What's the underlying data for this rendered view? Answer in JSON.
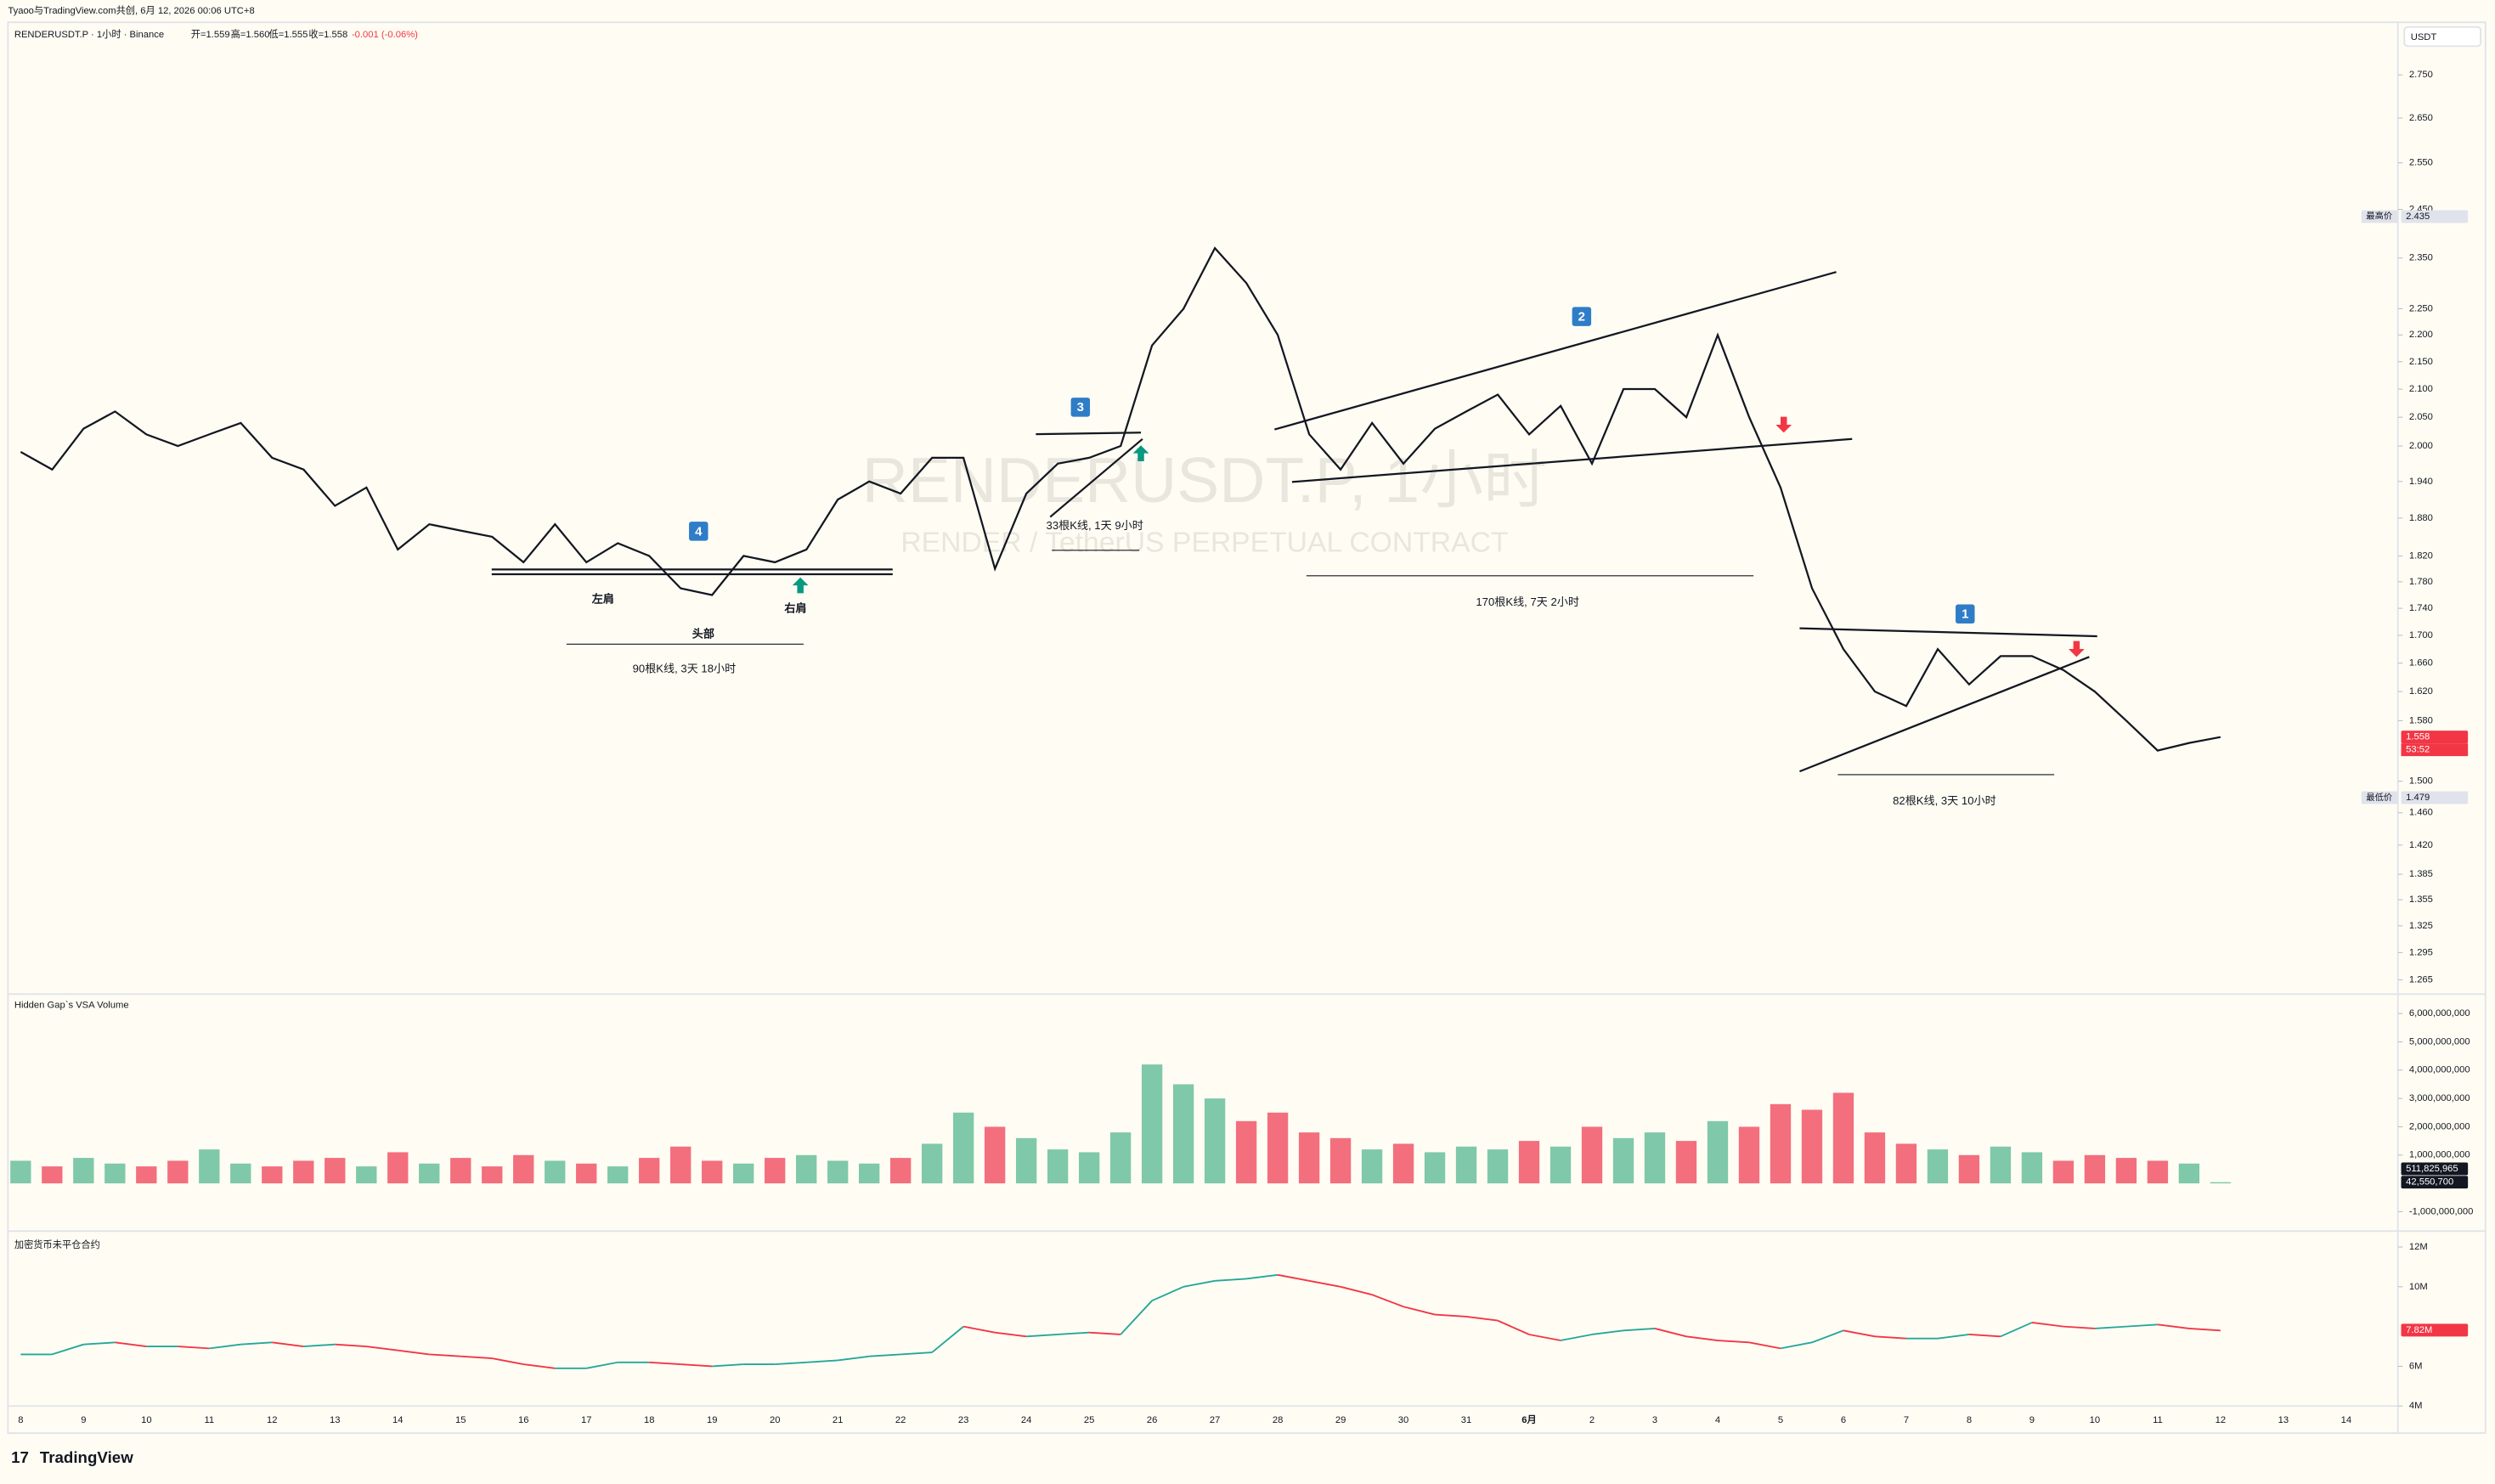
{
  "header": {
    "credit": "Tyaoo与TradingView.com共创, 6月 12, 2026 00:06 UTC+8",
    "symbol": "RENDERUSDT.P · 1小时 · Binance",
    "ohlc": [
      "开=1.559",
      "高=1.560",
      "低=1.555",
      "收=1.558"
    ],
    "change": "-0.001 (-0.06%)",
    "currency": "USDT"
  },
  "watermark": {
    "symbol": "RENDERUSDT.P, 1小时",
    "description": "RENDER / TetherUS PERPETUAL CONTRACT"
  },
  "footer": {
    "logo": "TradingView"
  },
  "chart_data": [
    {
      "type": "line",
      "log_scale": true,
      "grid": false,
      "color": "#131722",
      "ylim": [
        1.2513,
        2.873
      ],
      "yticks": [
        {
          "value": 2.75,
          "label": "2.750"
        },
        {
          "value": 2.65,
          "label": "2.650"
        },
        {
          "value": 2.55,
          "label": "2.550"
        },
        {
          "value": 2.45,
          "label": "2.450"
        },
        {
          "value": 2.35,
          "label": "2.350"
        },
        {
          "value": 2.25,
          "label": "2.250"
        },
        {
          "value": 2.2,
          "label": "2.200"
        },
        {
          "value": 2.15,
          "label": "2.150"
        },
        {
          "value": 2.1,
          "label": "2.100"
        },
        {
          "value": 2.05,
          "label": "2.050"
        },
        {
          "value": 2,
          "label": "2.000"
        },
        {
          "value": 1.94,
          "label": "1.940"
        },
        {
          "value": 1.88,
          "label": "1.880"
        },
        {
          "value": 1.82,
          "label": "1.820"
        },
        {
          "value": 1.78,
          "label": "1.780"
        },
        {
          "value": 1.74,
          "label": "1.740"
        },
        {
          "value": 1.7,
          "label": "1.700"
        },
        {
          "value": 1.66,
          "label": "1.660"
        },
        {
          "value": 1.62,
          "label": "1.620"
        },
        {
          "value": 1.58,
          "label": "1.580"
        },
        {
          "value": 1.5,
          "label": "1.500"
        },
        {
          "value": 1.46,
          "label": "1.460"
        },
        {
          "value": 1.42,
          "label": "1.420"
        },
        1.385,
        1.355,
        1.325,
        1.295,
        1.265
      ],
      "values": [
        1.99,
        1.96,
        2.03,
        2.06,
        2.02,
        2.0,
        2.02,
        2.04,
        1.98,
        1.96,
        1.9,
        1.93,
        1.83,
        1.87,
        1.86,
        1.85,
        1.81,
        1.87,
        1.81,
        1.84,
        1.82,
        1.77,
        1.76,
        1.82,
        1.81,
        1.83,
        1.91,
        1.94,
        1.92,
        1.98,
        1.98,
        1.8,
        1.92,
        1.97,
        1.98,
        2.0,
        2.18,
        2.25,
        2.37,
        2.3,
        2.2,
        2.02,
        1.96,
        2.04,
        1.97,
        2.03,
        2.06,
        2.09,
        2.02,
        2.07,
        1.97,
        2.1,
        2.1,
        2.05,
        2.2,
        2.05,
        1.93,
        1.77,
        1.68,
        1.62,
        1.6,
        1.68,
        1.63,
        1.67,
        1.67,
        1.65,
        1.62,
        1.58,
        1.54,
        1.55,
        1.558,
        null,
        null,
        null,
        null,
        null
      ],
      "markers": [
        {
          "value": 2.435,
          "label": "2.435",
          "tag": "最高价"
        },
        {
          "value": 1.479,
          "label": "1.479",
          "tag": "最低价"
        },
        {
          "value": 1.558,
          "label": "1.558",
          "note": "53:52",
          "color": "#f23645"
        }
      ],
      "annotations": [
        "4",
        "3",
        "2",
        "1",
        "左肩",
        "头部",
        "右肩",
        "90根K线, 3天 18小时",
        "33根K线, 1天 9小时",
        "170根K线, 7天 2小时",
        "82根K线, 3天 10小时"
      ]
    },
    {
      "type": "bar",
      "title": "Hidden Gap`s VSA Volume",
      "up_color": "#7fc8a9",
      "down_color": "#f36f7e",
      "ylim": [
        -1573000000,
        6573000000
      ],
      "yticks": [
        {
          "value": 6000000000,
          "label": "6,000,000,000"
        },
        {
          "value": 5000000000,
          "label": "5,000,000,000"
        },
        {
          "value": 4000000000,
          "label": "4,000,000,000"
        },
        {
          "value": 3000000000,
          "label": "3,000,000,000"
        },
        {
          "value": 2000000000,
          "label": "2,000,000,000"
        },
        {
          "value": 1000000000,
          "label": "1,000,000,000"
        },
        {
          "value": -1000000000,
          "label": "-1,000,000,000"
        }
      ],
      "values": [
        800000000,
        600000000,
        900000000,
        700000000,
        600000000,
        800000000,
        1200000000,
        700000000,
        600000000,
        800000000,
        900000000,
        600000000,
        1100000000,
        700000000,
        900000000,
        600000000,
        1000000000,
        800000000,
        700000000,
        600000000,
        900000000,
        1300000000,
        800000000,
        700000000,
        900000000,
        1000000000,
        800000000,
        700000000,
        900000000,
        1400000000,
        2500000000,
        2000000000,
        1600000000,
        1200000000,
        1100000000,
        1800000000,
        4200000000,
        3500000000,
        3000000000,
        2200000000,
        2500000000,
        1800000000,
        1600000000,
        1200000000,
        1400000000,
        1100000000,
        1300000000,
        1200000000,
        1500000000,
        1300000000,
        2000000000,
        1600000000,
        1800000000,
        1500000000,
        2200000000,
        2000000000,
        2800000000,
        2600000000,
        3200000000,
        1800000000,
        1400000000,
        1200000000,
        1000000000,
        1300000000,
        1100000000,
        800000000,
        1000000000,
        900000000,
        800000000,
        700000000,
        42550700,
        null,
        null,
        null,
        null,
        null
      ],
      "markers": [
        {
          "value": 511825965,
          "label": "511,825,965",
          "color": "#131722"
        },
        {
          "value": 42550700,
          "label": "42,550,700",
          "color": "#131722"
        }
      ]
    },
    {
      "type": "line",
      "title": "加密货币未平仓合约",
      "color": "#26a69a",
      "down_color": "#f23645",
      "ylim": [
        2.72,
        12.72
      ],
      "yticks": [
        {
          "value": 12,
          "label": "12M"
        },
        {
          "value": 10,
          "label": "10M"
        },
        {
          "value": 6,
          "label": "6M"
        },
        {
          "value": 4,
          "label": "4M"
        }
      ],
      "categories": [
        "8",
        null,
        "9",
        null,
        "10",
        null,
        "11",
        null,
        "12",
        null,
        "13",
        null,
        "14",
        null,
        "15",
        null,
        "16",
        null,
        "17",
        null,
        "18",
        null,
        "19",
        null,
        "20",
        null,
        "21",
        null,
        "22",
        null,
        "23",
        null,
        "24",
        null,
        "25",
        null,
        "26",
        null,
        "27",
        null,
        "28",
        null,
        "29",
        null,
        "30",
        null,
        "31",
        null,
        "6月",
        null,
        "2",
        null,
        "3",
        null,
        "4",
        null,
        "5",
        null,
        "6",
        null,
        "7",
        null,
        "8",
        null,
        "9",
        null,
        "10",
        null,
        "11",
        null,
        "12",
        null,
        "13",
        null,
        "14",
        null
      ],
      "values": [
        6.6,
        6.6,
        7.1,
        7.2,
        7.0,
        7.0,
        6.9,
        7.1,
        7.2,
        7.0,
        7.1,
        7.0,
        6.8,
        6.6,
        6.5,
        6.4,
        6.1,
        5.9,
        5.9,
        6.2,
        6.2,
        6.1,
        6.0,
        6.1,
        6.1,
        6.2,
        6.3,
        6.5,
        6.6,
        6.7,
        8.0,
        7.7,
        7.5,
        7.6,
        7.7,
        7.6,
        9.3,
        10.0,
        10.3,
        10.4,
        10.6,
        10.3,
        10.0,
        9.6,
        9.0,
        8.6,
        8.5,
        8.3,
        7.6,
        7.3,
        7.6,
        7.8,
        7.9,
        7.5,
        7.3,
        7.2,
        6.9,
        7.2,
        7.8,
        7.5,
        7.4,
        7.4,
        7.6,
        7.5,
        8.2,
        8.0,
        7.9,
        8.0,
        8.1,
        7.9,
        7.8,
        null,
        null,
        null,
        null,
        null
      ],
      "markers": [
        {
          "value": 7.82,
          "label": "7.82M",
          "color": "#f23645"
        }
      ]
    }
  ]
}
